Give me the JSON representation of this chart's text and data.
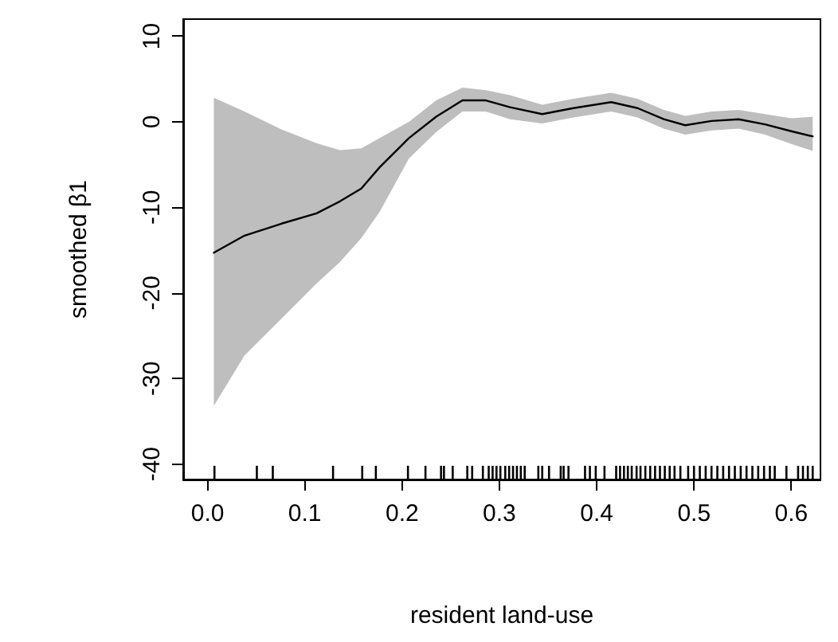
{
  "chart_data": {
    "type": "line",
    "xlabel": "resident land-use",
    "ylabel": "smoothed β1",
    "xlim": [
      -0.025,
      0.63
    ],
    "ylim": [
      -41.8,
      12
    ],
    "xticks": [
      {
        "value": 0,
        "label": "0.0"
      },
      0.1,
      0.2,
      0.3,
      0.4,
      0.5,
      0.6
    ],
    "yticks": [
      -40,
      -30,
      -20,
      -10,
      0,
      10
    ],
    "grid": false,
    "marker": "none",
    "line_style": "solid",
    "series": [
      {
        "color": "#000000",
        "x": [
          0.0065,
          0.038,
          0.076,
          0.112,
          0.136,
          0.158,
          0.177,
          0.207,
          0.235,
          0.262,
          0.286,
          0.311,
          0.344,
          0.376,
          0.415,
          0.442,
          0.469,
          0.491,
          0.518,
          0.546,
          0.573,
          0.6,
          0.622
        ],
        "values": [
          -15.3,
          -13.3,
          -11.9,
          -10.7,
          -9.3,
          -7.8,
          -5.3,
          -1.9,
          0.6,
          2.5,
          2.5,
          1.7,
          0.9,
          1.6,
          2.3,
          1.6,
          0.3,
          -0.4,
          0.1,
          0.3,
          -0.3,
          -1.1,
          -1.7
        ],
        "upper": [
          2.8,
          1.2,
          -0.9,
          -2.5,
          -3.3,
          -3.1,
          -1.9,
          0,
          2.5,
          4.0,
          3.7,
          3.1,
          2.0,
          2.7,
          3.4,
          2.7,
          1.4,
          0.7,
          1.2,
          1.4,
          0.9,
          0.4,
          0.6
        ],
        "lower": [
          -33.2,
          -27.3,
          -23,
          -18.9,
          -16.4,
          -13.6,
          -10.5,
          -4.3,
          -1.2,
          1.2,
          1.2,
          0.3,
          -0.2,
          0.5,
          1.2,
          0.5,
          -0.8,
          -1.5,
          -1.0,
          -0.8,
          -1.5,
          -2.6,
          -3.4
        ]
      },
      {
        "type": "bar",
        "color": "#000000",
        "base": [
          -41.8,
          -41.8,
          -41.8,
          -41.8,
          -41.8,
          -41.8,
          -41.8,
          -41.8,
          -41.8,
          -41.8,
          -41.8,
          -41.8,
          -41.8,
          -41.8,
          -41.8,
          -41.8,
          -41.8,
          -41.8,
          -41.8,
          -41.8,
          -41.8,
          -41.8,
          -41.8,
          -41.8,
          -41.8,
          -41.8,
          -41.8,
          -41.8,
          -41.8,
          -41.8,
          -41.8,
          -41.8,
          -41.8,
          -41.8,
          -41.8,
          -41.8,
          -41.8,
          -41.8,
          -41.8,
          -41.8,
          -41.8,
          -41.8,
          -41.8,
          -41.8,
          -41.8,
          -41.8,
          -41.8,
          -41.8,
          -41.8,
          -41.8,
          -41.8,
          -41.8,
          -41.8,
          -41.8,
          -41.8,
          -41.8,
          -41.8,
          -41.8,
          -41.8,
          -41.8,
          -41.8,
          -41.8,
          -41.8,
          -41.8,
          -41.8,
          -41.8,
          -41.8,
          -41.8,
          -41.8,
          -41.8
        ],
        "x": [
          0.0071,
          0.0507,
          0.0671,
          0.129,
          0.159,
          0.173,
          0.206,
          0.224,
          0.24,
          0.243,
          0.252,
          0.267,
          0.272,
          0.283,
          0.289,
          0.293,
          0.297,
          0.301,
          0.306,
          0.31,
          0.314,
          0.318,
          0.322,
          0.326,
          0.34,
          0.344,
          0.351,
          0.363,
          0.366,
          0.371,
          0.388,
          0.393,
          0.399,
          0.408,
          0.42,
          0.424,
          0.428,
          0.432,
          0.436,
          0.441,
          0.445,
          0.45,
          0.455,
          0.46,
          0.465,
          0.47,
          0.475,
          0.48,
          0.486,
          0.494,
          0.5,
          0.506,
          0.512,
          0.518,
          0.524,
          0.53,
          0.536,
          0.542,
          0.548,
          0.554,
          0.56,
          0.566,
          0.572,
          0.578,
          0.583,
          0.595,
          0.607,
          0.612,
          0.617,
          0.622
        ],
        "values": [
          1.6,
          1.6,
          1.6,
          1.6,
          1.6,
          1.6,
          1.6,
          1.6,
          1.6,
          1.6,
          1.6,
          1.6,
          1.6,
          1.6,
          1.6,
          1.6,
          1.6,
          1.6,
          1.6,
          1.6,
          1.6,
          1.6,
          1.6,
          1.6,
          1.6,
          1.6,
          1.6,
          1.6,
          1.6,
          1.6,
          1.6,
          1.6,
          1.6,
          1.6,
          1.6,
          1.6,
          1.6,
          1.6,
          1.6,
          1.6,
          1.6,
          1.6,
          1.6,
          1.6,
          1.6,
          1.6,
          1.6,
          1.6,
          1.6,
          1.6,
          1.6,
          1.6,
          1.6,
          1.6,
          1.6,
          1.6,
          1.6,
          1.6,
          1.6,
          1.6,
          1.6,
          1.6,
          1.6,
          1.6,
          1.6,
          1.6,
          1.6,
          1.6,
          1.6,
          1.6
        ]
      }
    ]
  }
}
